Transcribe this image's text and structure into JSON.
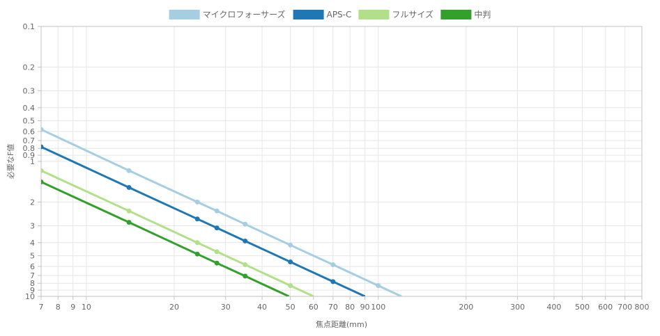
{
  "chart_data": {
    "type": "line",
    "title": "",
    "xlabel": "焦点距離(mm)",
    "ylabel": "必要なF値",
    "x_scale": "log",
    "y_scale": "log",
    "y_reversed": true,
    "xlim": [
      7,
      800
    ],
    "ylim": [
      0.1,
      10
    ],
    "grid": true,
    "legend_position": "top",
    "x_ticks": [
      7,
      8,
      9,
      10,
      20,
      30,
      40,
      50,
      60,
      70,
      80,
      90,
      100,
      200,
      300,
      400,
      500,
      600,
      700,
      800
    ],
    "x_tick_labels": [
      "7",
      "8",
      "9",
      "10",
      "20",
      "30",
      "40",
      "50",
      "60",
      "70",
      "80",
      "90",
      "100",
      "200",
      "300",
      "400",
      "500",
      "600",
      "700",
      "800"
    ],
    "y_ticks": [
      0.1,
      0.2,
      0.3,
      0.4,
      0.5,
      0.6,
      0.7,
      0.8,
      0.9,
      1,
      2,
      3,
      4,
      5,
      6,
      7,
      8,
      9,
      10
    ],
    "y_tick_labels": [
      "0.1",
      "0.2",
      "0.3",
      "0.4",
      "0.5",
      "0.6",
      "0.7",
      "0.8",
      "0.9",
      "1",
      "2",
      "3",
      "4",
      "5",
      "6",
      "7",
      "8",
      "9",
      "10"
    ],
    "series": [
      {
        "name": "マイクロフォーサーズ",
        "color": "#a6cee3",
        "points": [
          [
            7,
            0.58
          ],
          [
            14,
            1.17
          ],
          [
            24,
            2.0
          ],
          [
            28,
            2.33
          ],
          [
            35,
            2.92
          ],
          [
            50,
            4.17
          ],
          [
            70,
            5.83
          ],
          [
            100,
            8.33
          ],
          [
            120,
            10
          ]
        ]
      },
      {
        "name": "APS-C",
        "color": "#1f78b4",
        "points": [
          [
            7,
            0.78
          ],
          [
            14,
            1.56
          ],
          [
            24,
            2.67
          ],
          [
            28,
            3.11
          ],
          [
            35,
            3.89
          ],
          [
            50,
            5.56
          ],
          [
            70,
            7.78
          ],
          [
            90,
            10
          ]
        ]
      },
      {
        "name": "フルサイズ",
        "color": "#b2df8a",
        "points": [
          [
            7,
            1.17
          ],
          [
            14,
            2.33
          ],
          [
            24,
            4.0
          ],
          [
            28,
            4.67
          ],
          [
            35,
            5.83
          ],
          [
            50,
            8.33
          ],
          [
            60,
            10
          ]
        ]
      },
      {
        "name": "中判",
        "color": "#33a02c",
        "points": [
          [
            7,
            1.42
          ],
          [
            14,
            2.83
          ],
          [
            24,
            4.86
          ],
          [
            28,
            5.67
          ],
          [
            35,
            7.08
          ],
          [
            49.4,
            10
          ]
        ]
      }
    ]
  }
}
